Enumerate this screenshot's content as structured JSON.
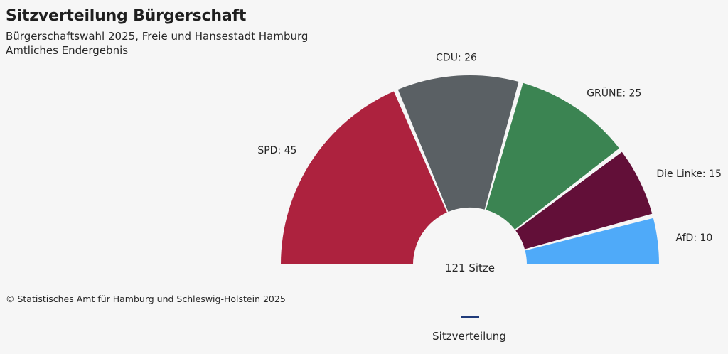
{
  "header": {
    "title": "Sitzverteilung Bürgerschaft",
    "subtitle_line1": "Bürgerschaftswahl 2025, Freie und Hansestadt Hamburg",
    "subtitle_line2": "Amtliches Endergebnis"
  },
  "chart_data": {
    "type": "pie",
    "variant": "parliament-semicircle",
    "total_label": "121 Sitze",
    "total_seats": 121,
    "categories": [
      "SPD",
      "CDU",
      "GRÜNE",
      "Die Linke",
      "AfD"
    ],
    "values": [
      45,
      26,
      25,
      15,
      10
    ],
    "labels": [
      "SPD: 45",
      "CDU: 26",
      "GRÜNE: 25",
      "Die Linke: 15",
      "AfD: 10"
    ],
    "colors": [
      "#ad223e",
      "#5a6064",
      "#3b8452",
      "#620f38",
      "#4faaf9"
    ]
  },
  "footer": {
    "source": "© Statistisches Amt für Hamburg und Schleswig-Holstein 2025"
  },
  "tabs": [
    {
      "label": "Sitzverteilung",
      "active": true
    }
  ]
}
